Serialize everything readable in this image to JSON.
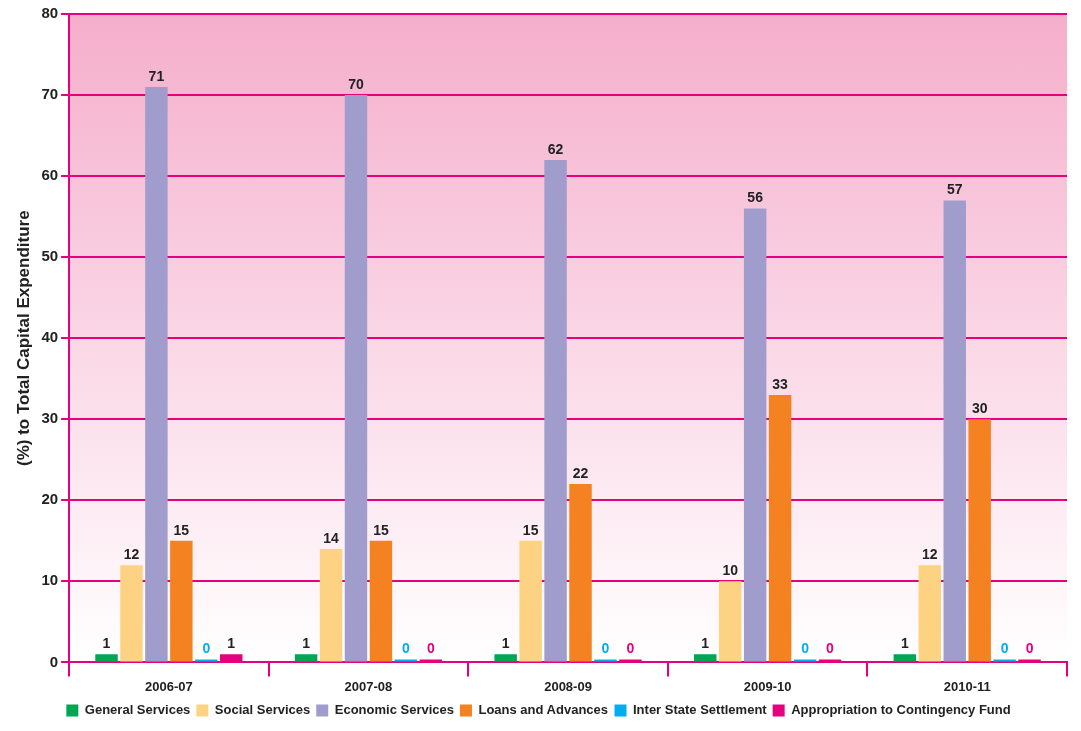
{
  "chart_data": {
    "type": "bar",
    "ylabel": "(%) to Total Capital Expenditure",
    "categories": [
      "2006-07",
      "2007-08",
      "2008-09",
      "2009-10",
      "2010-11"
    ],
    "series": [
      {
        "name": "General Services",
        "color": "#00a651",
        "values": [
          1,
          1,
          1,
          1,
          1
        ]
      },
      {
        "name": "Social Services",
        "color": "#fdd283",
        "values": [
          12,
          14,
          15,
          10,
          12
        ]
      },
      {
        "name": "Economic Services",
        "color": "#a09dcc",
        "values": [
          71,
          70,
          62,
          56,
          57
        ]
      },
      {
        "name": "Loans and Advances",
        "color": "#f58220",
        "values": [
          15,
          15,
          22,
          33,
          30
        ]
      },
      {
        "name": "Inter State Settlement",
        "color": "#00aeef",
        "values": [
          0,
          0,
          0,
          0,
          0
        ]
      },
      {
        "name": "Appropriation to Contingency Fund",
        "color": "#e6007e",
        "values": [
          1,
          0,
          0,
          0,
          0
        ]
      }
    ],
    "ylim": [
      0,
      80
    ],
    "yticks": [
      0,
      10,
      20,
      30,
      40,
      50,
      60,
      70,
      80
    ],
    "grid": "y",
    "legend": "bottom",
    "data_labels": true
  }
}
